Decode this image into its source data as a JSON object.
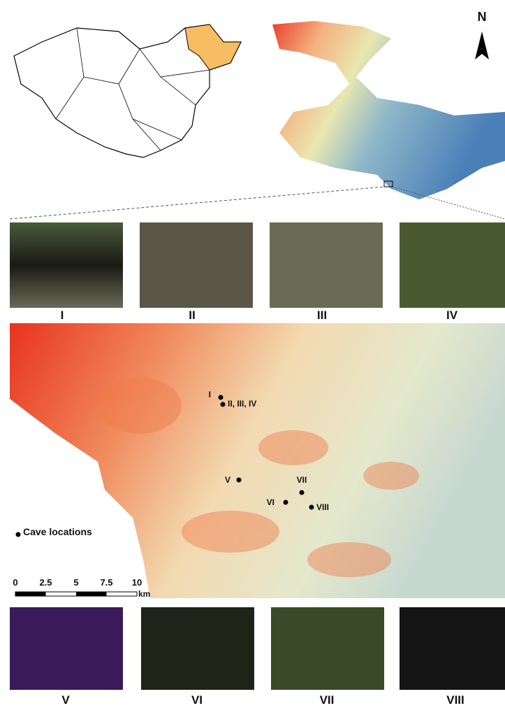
{
  "north_label": "N",
  "photos_top": [
    {
      "label": "I"
    },
    {
      "label": "II"
    },
    {
      "label": "III"
    },
    {
      "label": "IV"
    }
  ],
  "map": {
    "sites": [
      {
        "label": "I"
      },
      {
        "label": "II, III, IV"
      },
      {
        "label": "V"
      },
      {
        "label": "VI"
      },
      {
        "label": "VII"
      },
      {
        "label": "VIII"
      }
    ],
    "legend": "Cave locations",
    "scale": {
      "ticks": [
        0,
        2.5,
        5,
        7.5,
        10
      ],
      "unit": "km"
    }
  },
  "photos_bottom": [
    {
      "label": "V"
    },
    {
      "label": "VI"
    },
    {
      "label": "VII"
    },
    {
      "label": "VIII"
    }
  ]
}
